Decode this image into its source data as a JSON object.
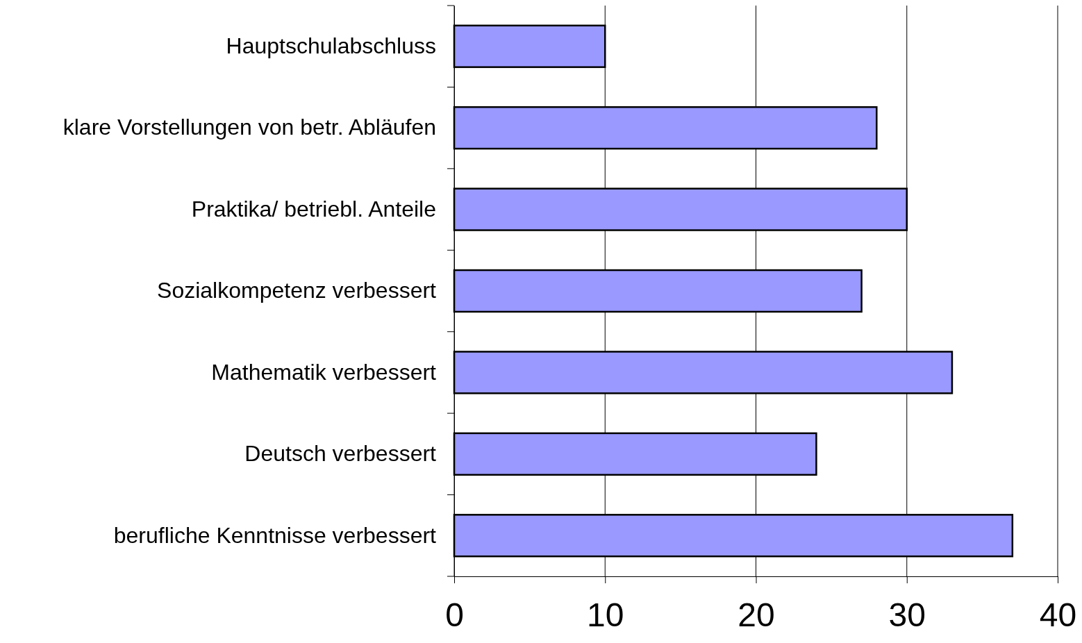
{
  "chart_data": {
    "type": "bar",
    "orientation": "horizontal",
    "categories": [
      "Hauptschulabschluss",
      "klare Vorstellungen von betr. Abläufen",
      "Praktika/ betriebl. Anteile",
      "Sozialkompetenz verbessert",
      "Mathematik verbessert",
      "Deutsch verbessert",
      "berufliche Kenntnisse verbessert"
    ],
    "values": [
      10,
      28,
      30,
      27,
      33,
      24,
      37
    ],
    "color": "#9999ff",
    "xlim": [
      0,
      40
    ],
    "xticks": [
      0,
      10,
      20,
      30,
      40
    ],
    "grid": "x"
  }
}
